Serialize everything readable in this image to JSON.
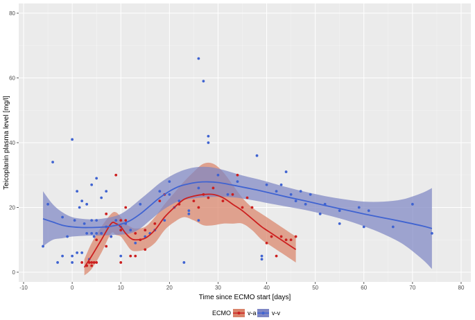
{
  "chart_data": {
    "type": "scatter",
    "title": "",
    "xlabel": "Time since ECMO start [days]",
    "ylabel": "Teicoplanin plasma level [mg/l]",
    "xlim": [
      -11,
      82
    ],
    "ylim": [
      -3,
      83
    ],
    "x_ticks": [
      -10,
      0,
      10,
      20,
      30,
      40,
      50,
      60,
      70,
      80
    ],
    "y_ticks": [
      0,
      20,
      40,
      60,
      80
    ],
    "grid": true,
    "legend": {
      "title": "ECMO",
      "placement": "bottom",
      "entries": [
        "v-a",
        "v-v"
      ]
    },
    "colors": {
      "panel_bg": "#ebebeb",
      "grid_major": "#ffffff",
      "va": "#cc1f1f",
      "va_band": "#d9836a",
      "vv": "#3f63d1",
      "vv_band": "#7e86c4"
    },
    "series": [
      {
        "name": "v-a",
        "points": [
          [
            2,
            3
          ],
          [
            3,
            2
          ],
          [
            3.5,
            3
          ],
          [
            4,
            2
          ],
          [
            4,
            3
          ],
          [
            4.5,
            3
          ],
          [
            5,
            3
          ],
          [
            5,
            10
          ],
          [
            6,
            12
          ],
          [
            7,
            8
          ],
          [
            7,
            18
          ],
          [
            8,
            11
          ],
          [
            9,
            30
          ],
          [
            10,
            3
          ],
          [
            10,
            13
          ],
          [
            10,
            16
          ],
          [
            11,
            16
          ],
          [
            11,
            20
          ],
          [
            12,
            5
          ],
          [
            13,
            12
          ],
          [
            13,
            5
          ],
          [
            14,
            10
          ],
          [
            15,
            13
          ],
          [
            15,
            7
          ],
          [
            17,
            15
          ],
          [
            18,
            22
          ],
          [
            19,
            24
          ],
          [
            22,
            21
          ],
          [
            25,
            22
          ],
          [
            26,
            20
          ],
          [
            27,
            24
          ],
          [
            28,
            23
          ],
          [
            29,
            26
          ],
          [
            31,
            22
          ],
          [
            33,
            24
          ],
          [
            34,
            30
          ],
          [
            35,
            20
          ],
          [
            36,
            23
          ],
          [
            37,
            20
          ],
          [
            40,
            9
          ],
          [
            41,
            11
          ],
          [
            42,
            5
          ],
          [
            43,
            11
          ],
          [
            44,
            10
          ],
          [
            45,
            10
          ],
          [
            46,
            11
          ]
        ],
        "smooth": [
          [
            2.5,
            1.5
          ],
          [
            4,
            5
          ],
          [
            6,
            10
          ],
          [
            8,
            15
          ],
          [
            9,
            15
          ],
          [
            10,
            14
          ],
          [
            11,
            12
          ],
          [
            12,
            10.5
          ],
          [
            13,
            10
          ],
          [
            15,
            10.5
          ],
          [
            17,
            13
          ],
          [
            19,
            17
          ],
          [
            21,
            20
          ],
          [
            23,
            22.5
          ],
          [
            25,
            23.5
          ],
          [
            27,
            24
          ],
          [
            29,
            24
          ],
          [
            31,
            23
          ],
          [
            33,
            21
          ],
          [
            35,
            19
          ],
          [
            37,
            16.5
          ],
          [
            39,
            14
          ],
          [
            41,
            12
          ],
          [
            43,
            10
          ],
          [
            46,
            7
          ]
        ],
        "band_upper": [
          [
            2.5,
            4
          ],
          [
            4,
            9
          ],
          [
            6,
            14
          ],
          [
            8,
            18
          ],
          [
            9,
            18.5
          ],
          [
            10,
            17
          ],
          [
            11,
            15
          ],
          [
            12,
            14
          ],
          [
            13,
            13.5
          ],
          [
            15,
            14
          ],
          [
            17,
            17
          ],
          [
            19,
            21
          ],
          [
            21,
            24.5
          ],
          [
            23,
            28
          ],
          [
            25,
            31
          ],
          [
            27,
            33.5
          ],
          [
            29,
            33.5
          ],
          [
            31,
            31
          ],
          [
            33,
            27
          ],
          [
            35,
            23
          ],
          [
            37,
            20
          ],
          [
            39,
            18
          ],
          [
            41,
            16
          ],
          [
            43,
            14
          ],
          [
            46,
            11
          ]
        ],
        "band_lower": [
          [
            2.5,
            -1
          ],
          [
            4,
            1
          ],
          [
            6,
            6
          ],
          [
            8,
            12
          ],
          [
            9,
            11.5
          ],
          [
            10,
            11
          ],
          [
            11,
            9
          ],
          [
            12,
            7
          ],
          [
            13,
            6.5
          ],
          [
            15,
            7
          ],
          [
            17,
            9
          ],
          [
            19,
            13
          ],
          [
            21,
            15.5
          ],
          [
            23,
            17
          ],
          [
            25,
            16
          ],
          [
            27,
            14.5
          ],
          [
            29,
            14.5
          ],
          [
            31,
            15
          ],
          [
            33,
            15
          ],
          [
            35,
            15
          ],
          [
            37,
            13
          ],
          [
            39,
            10
          ],
          [
            41,
            8
          ],
          [
            43,
            6
          ],
          [
            46,
            3
          ]
        ]
      },
      {
        "name": "v-v",
        "points": [
          [
            -6,
            8
          ],
          [
            -5,
            21
          ],
          [
            -4,
            34
          ],
          [
            -3,
            3
          ],
          [
            -2,
            17
          ],
          [
            -2,
            5
          ],
          [
            -1,
            11
          ],
          [
            0,
            41
          ],
          [
            0,
            3
          ],
          [
            0,
            5
          ],
          [
            0.5,
            16
          ],
          [
            1,
            25
          ],
          [
            1,
            6
          ],
          [
            1.5,
            20
          ],
          [
            2,
            22
          ],
          [
            2,
            6
          ],
          [
            2.5,
            15
          ],
          [
            3,
            21
          ],
          [
            3,
            12
          ],
          [
            3.5,
            4
          ],
          [
            4,
            27
          ],
          [
            4,
            16
          ],
          [
            4,
            12
          ],
          [
            4.5,
            11
          ],
          [
            5,
            29
          ],
          [
            5,
            16
          ],
          [
            5,
            12
          ],
          [
            6,
            23
          ],
          [
            6,
            12
          ],
          [
            7,
            25
          ],
          [
            7,
            14
          ],
          [
            8,
            11
          ],
          [
            9,
            16
          ],
          [
            10,
            5
          ],
          [
            10,
            14
          ],
          [
            11,
            15
          ],
          [
            12,
            13
          ],
          [
            13,
            9
          ],
          [
            14,
            21
          ],
          [
            15,
            11
          ],
          [
            16,
            12
          ],
          [
            17,
            13
          ],
          [
            18,
            25
          ],
          [
            19,
            16
          ],
          [
            20,
            24
          ],
          [
            20,
            28
          ],
          [
            21,
            20
          ],
          [
            22,
            22
          ],
          [
            23,
            3
          ],
          [
            24,
            19
          ],
          [
            24,
            18
          ],
          [
            26,
            66
          ],
          [
            26,
            16
          ],
          [
            26,
            26
          ],
          [
            27,
            59
          ],
          [
            28,
            42
          ],
          [
            28,
            40
          ],
          [
            30,
            30
          ],
          [
            32,
            24
          ],
          [
            34,
            28
          ],
          [
            38,
            36
          ],
          [
            39,
            5
          ],
          [
            39,
            4
          ],
          [
            40,
            27
          ],
          [
            42,
            25
          ],
          [
            43,
            27
          ],
          [
            44,
            31
          ],
          [
            45,
            24
          ],
          [
            46,
            22
          ],
          [
            47,
            25
          ],
          [
            48,
            21
          ],
          [
            49,
            24
          ],
          [
            51,
            18
          ],
          [
            52,
            21
          ],
          [
            55,
            19
          ],
          [
            55,
            15
          ],
          [
            59,
            20
          ],
          [
            60,
            14
          ],
          [
            61,
            19
          ],
          [
            66,
            14
          ],
          [
            70,
            21
          ],
          [
            74,
            12
          ]
        ],
        "smooth": [
          [
            -6,
            16.5
          ],
          [
            -4,
            15.5
          ],
          [
            -2,
            14.5
          ],
          [
            0,
            14
          ],
          [
            2,
            13.8
          ],
          [
            4,
            13.8
          ],
          [
            6,
            13.9
          ],
          [
            8,
            14.2
          ],
          [
            10,
            14.8
          ],
          [
            12,
            16
          ],
          [
            14,
            18
          ],
          [
            16,
            20.5
          ],
          [
            18,
            23
          ],
          [
            20,
            25
          ],
          [
            22,
            26.5
          ],
          [
            24,
            27.3
          ],
          [
            26,
            27.8
          ],
          [
            28,
            27.9
          ],
          [
            30,
            27.7
          ],
          [
            32,
            27.2
          ],
          [
            34,
            26.6
          ],
          [
            36,
            26
          ],
          [
            38,
            25.4
          ],
          [
            40,
            24.7
          ],
          [
            44,
            23.3
          ],
          [
            48,
            22
          ],
          [
            52,
            20.6
          ],
          [
            56,
            19.3
          ],
          [
            60,
            18
          ],
          [
            64,
            16.8
          ],
          [
            68,
            15.6
          ],
          [
            72,
            14.3
          ],
          [
            74,
            13.5
          ]
        ],
        "band_upper": [
          [
            -6,
            25
          ],
          [
            -4,
            21
          ],
          [
            -2,
            18.5
          ],
          [
            0,
            17
          ],
          [
            2,
            16.5
          ],
          [
            4,
            16.3
          ],
          [
            6,
            16.5
          ],
          [
            8,
            17
          ],
          [
            10,
            18
          ],
          [
            12,
            20
          ],
          [
            14,
            22.5
          ],
          [
            16,
            25
          ],
          [
            18,
            27.5
          ],
          [
            20,
            29.5
          ],
          [
            22,
            31
          ],
          [
            24,
            32
          ],
          [
            26,
            32.5
          ],
          [
            28,
            32.5
          ],
          [
            30,
            32
          ],
          [
            32,
            31.2
          ],
          [
            34,
            30.3
          ],
          [
            36,
            29.5
          ],
          [
            38,
            28.8
          ],
          [
            40,
            28
          ],
          [
            44,
            26.3
          ],
          [
            48,
            24.8
          ],
          [
            52,
            23.5
          ],
          [
            56,
            22.5
          ],
          [
            60,
            21.8
          ],
          [
            64,
            21.8
          ],
          [
            68,
            22.5
          ],
          [
            72,
            24.5
          ],
          [
            74,
            26
          ]
        ],
        "band_lower": [
          [
            -6,
            8
          ],
          [
            -4,
            10
          ],
          [
            -2,
            10.5
          ],
          [
            0,
            11
          ],
          [
            2,
            11.2
          ],
          [
            4,
            11.3
          ],
          [
            6,
            11.3
          ],
          [
            8,
            11.5
          ],
          [
            10,
            11.6
          ],
          [
            12,
            12
          ],
          [
            14,
            13.5
          ],
          [
            16,
            16
          ],
          [
            18,
            18.5
          ],
          [
            20,
            20.5
          ],
          [
            22,
            22
          ],
          [
            24,
            22.6
          ],
          [
            26,
            23
          ],
          [
            28,
            23.2
          ],
          [
            30,
            23.3
          ],
          [
            32,
            23.2
          ],
          [
            34,
            23
          ],
          [
            36,
            22.5
          ],
          [
            38,
            22
          ],
          [
            40,
            21.4
          ],
          [
            44,
            20.3
          ],
          [
            48,
            19.2
          ],
          [
            52,
            17.8
          ],
          [
            56,
            16.2
          ],
          [
            60,
            14.2
          ],
          [
            64,
            11.8
          ],
          [
            68,
            8.7
          ],
          [
            72,
            4
          ],
          [
            74,
            1
          ]
        ]
      }
    ]
  }
}
